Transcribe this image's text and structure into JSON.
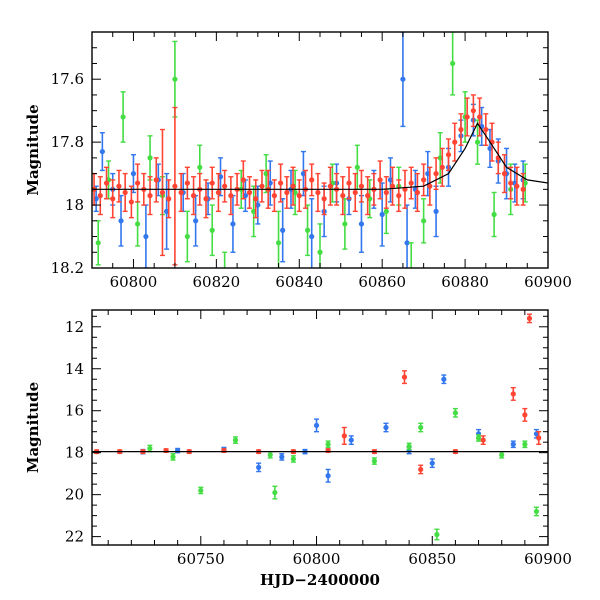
{
  "chart_data": [
    {
      "type": "scatter",
      "panel": "top",
      "xlabel": "",
      "ylabel": "Magnitude",
      "xlim": [
        60790,
        60900
      ],
      "ylim": [
        18.2,
        17.45
      ],
      "y_inverted": true,
      "xticks": [
        60800,
        60820,
        60840,
        60860,
        60880,
        60900
      ],
      "yticks": [
        17.6,
        17.8,
        18,
        18.2
      ],
      "xtick_labels": [
        "60800",
        "60820",
        "60840",
        "60860",
        "60880",
        "60900"
      ],
      "ytick_labels": [
        "17.6",
        "17.8",
        "18",
        "18.2"
      ],
      "grid": false,
      "legend": "none",
      "series": [
        {
          "color": "#3377ee",
          "x": [
            60791,
            60792.5,
            60795,
            60797,
            60800,
            60803,
            60806,
            60808,
            60812,
            60815,
            60818,
            60821,
            60824,
            60827,
            60830,
            60833,
            60836,
            60838,
            60841,
            60843,
            60846,
            60849,
            60852,
            60855,
            60858,
            60860,
            60862,
            60865,
            60866,
            60868,
            60871,
            60873,
            60876,
            60879,
            60882,
            60884,
            60886,
            60888,
            60890,
            60892,
            60894
          ],
          "y": [
            17.98,
            17.83,
            17.95,
            18.05,
            17.9,
            18.1,
            17.92,
            18.02,
            17.96,
            18.05,
            17.98,
            17.91,
            18.06,
            17.97,
            18.0,
            17.93,
            18.08,
            17.95,
            17.9,
            18.1,
            18.02,
            17.93,
            17.98,
            18.06,
            17.95,
            18.03,
            17.92,
            17.6,
            18.12,
            17.95,
            17.9,
            18.02,
            17.88,
            17.78,
            17.73,
            17.75,
            17.82,
            17.86,
            17.9,
            17.93,
            17.92
          ],
          "err": [
            0.04,
            0.06,
            0.05,
            0.08,
            0.06,
            0.1,
            0.05,
            0.12,
            0.06,
            0.08,
            0.05,
            0.06,
            0.09,
            0.05,
            0.06,
            0.07,
            0.1,
            0.06,
            0.07,
            0.12,
            0.08,
            0.06,
            0.05,
            0.09,
            0.06,
            0.1,
            0.07,
            0.15,
            0.12,
            0.06,
            0.07,
            0.08,
            0.06,
            0.05,
            0.05,
            0.06,
            0.06,
            0.07,
            0.08,
            0.06,
            0.06
          ]
        },
        {
          "color": "#44dd44",
          "x": [
            60791.5,
            60794,
            60797.5,
            60801,
            60804,
            60807,
            60810,
            60813,
            60816,
            60819,
            60822,
            60826,
            60829,
            60832,
            60835,
            60839,
            60842,
            60845,
            60848,
            60851,
            60854,
            60857,
            60861,
            60864,
            60867,
            60870,
            60874,
            60877,
            60880,
            60883,
            60887,
            60891,
            60894.5
          ],
          "y": [
            18.12,
            17.92,
            17.72,
            18.06,
            17.85,
            17.97,
            17.6,
            18.1,
            17.88,
            18.08,
            18.25,
            17.95,
            18.02,
            17.9,
            18.12,
            17.96,
            18.08,
            18.15,
            17.93,
            18.06,
            17.88,
            17.98,
            18.02,
            17.94,
            18.22,
            18.05,
            17.85,
            17.55,
            17.72,
            17.8,
            18.03,
            17.95,
            17.93
          ],
          "err": [
            0.07,
            0.06,
            0.08,
            0.07,
            0.07,
            0.06,
            0.12,
            0.08,
            0.07,
            0.08,
            0.1,
            0.06,
            0.08,
            0.06,
            0.1,
            0.07,
            0.08,
            0.09,
            0.06,
            0.08,
            0.07,
            0.06,
            0.07,
            0.06,
            0.1,
            0.07,
            0.08,
            0.1,
            0.08,
            0.07,
            0.07,
            0.08,
            0.06
          ]
        },
        {
          "color": "#ff4433",
          "x": [
            60790.5,
            60792,
            60793.5,
            60795,
            60796.5,
            60798,
            60799.5,
            60801,
            60802.5,
            60804,
            60805.5,
            60807,
            60808.5,
            60810,
            60811.5,
            60813,
            60814.5,
            60816,
            60817.5,
            60819,
            60820.5,
            60822,
            60823.5,
            60825,
            60826.5,
            60828,
            60829.5,
            60831,
            60832.5,
            60834,
            60835.5,
            60837,
            60838.5,
            60840,
            60841.5,
            60843,
            60844.5,
            60846,
            60847.5,
            60849,
            60850.5,
            60852,
            60853.5,
            60855,
            60856.5,
            60858,
            60859.5,
            60861,
            60862.5,
            60864,
            60865.5,
            60867,
            60868.5,
            60870,
            60871.5,
            60873,
            60874.5,
            60876,
            60877.5,
            60879,
            60880.5,
            60882,
            60883.5,
            60885,
            60886.5,
            60888,
            60889.5,
            60891,
            60892.5,
            60894
          ],
          "y": [
            17.95,
            17.97,
            17.93,
            17.98,
            17.94,
            17.96,
            17.99,
            17.93,
            17.95,
            17.97,
            17.92,
            17.96,
            17.98,
            17.94,
            17.96,
            17.93,
            17.97,
            17.95,
            17.98,
            17.93,
            17.96,
            17.94,
            17.97,
            17.95,
            17.92,
            17.96,
            17.98,
            17.94,
            17.95,
            17.97,
            17.93,
            17.96,
            17.94,
            17.97,
            17.95,
            17.92,
            17.96,
            17.98,
            17.94,
            17.95,
            17.97,
            17.93,
            17.96,
            17.94,
            17.97,
            17.95,
            17.92,
            17.96,
            17.94,
            17.97,
            17.95,
            17.93,
            17.96,
            17.92,
            17.94,
            17.9,
            17.88,
            17.84,
            17.8,
            17.76,
            17.72,
            17.7,
            17.72,
            17.76,
            17.8,
            17.85,
            17.9,
            17.93,
            17.94,
            17.95
          ],
          "err": [
            0.05,
            0.06,
            0.05,
            0.06,
            0.05,
            0.06,
            0.05,
            0.06,
            0.05,
            0.06,
            0.07,
            0.2,
            0.06,
            0.25,
            0.06,
            0.05,
            0.06,
            0.05,
            0.06,
            0.05,
            0.06,
            0.05,
            0.06,
            0.05,
            0.06,
            0.05,
            0.06,
            0.05,
            0.06,
            0.05,
            0.06,
            0.05,
            0.06,
            0.05,
            0.06,
            0.05,
            0.06,
            0.05,
            0.06,
            0.05,
            0.06,
            0.05,
            0.06,
            0.05,
            0.06,
            0.05,
            0.06,
            0.05,
            0.06,
            0.05,
            0.06,
            0.05,
            0.06,
            0.05,
            0.06,
            0.05,
            0.06,
            0.05,
            0.06,
            0.05,
            0.06,
            0.05,
            0.06,
            0.05,
            0.06,
            0.05,
            0.06,
            0.05,
            0.06,
            0.05
          ]
        },
        {
          "color": "#000000",
          "mode": "line",
          "x": [
            60790,
            60800,
            60810,
            60820,
            60830,
            60840,
            60850,
            60860,
            60870,
            60876,
            60880,
            60883,
            60886,
            60890,
            60895,
            60900
          ],
          "y": [
            17.95,
            17.95,
            17.95,
            17.95,
            17.95,
            17.95,
            17.95,
            17.95,
            17.94,
            17.9,
            17.82,
            17.74,
            17.8,
            17.88,
            17.92,
            17.93
          ]
        }
      ]
    },
    {
      "type": "scatter",
      "panel": "bottom",
      "xlabel": "HJD−2400000",
      "ylabel": "Magnitude",
      "xlim": [
        60703,
        60900
      ],
      "ylim": [
        22.4,
        11.2
      ],
      "y_inverted": true,
      "xticks": [
        60750,
        60800,
        60850,
        60900
      ],
      "yticks": [
        12,
        14,
        16,
        18,
        20,
        22
      ],
      "xtick_labels": [
        "60750",
        "60800",
        "60850",
        "60900"
      ],
      "ytick_labels": [
        "12",
        "14",
        "16",
        "18",
        "20",
        "22"
      ],
      "grid": false,
      "legend": "none",
      "series": [
        {
          "color": "#3377ee",
          "x": [
            60725,
            60740,
            60760,
            60775,
            60785,
            60795,
            60800,
            60805,
            60815,
            60830,
            60840,
            60850,
            60855,
            60870,
            60885,
            60895
          ],
          "y": [
            17.95,
            17.9,
            17.85,
            18.7,
            18.2,
            17.95,
            16.7,
            19.1,
            17.4,
            16.8,
            17.9,
            18.5,
            14.5,
            17.1,
            17.6,
            17.1
          ],
          "err": [
            0.1,
            0.1,
            0.1,
            0.2,
            0.15,
            0.1,
            0.3,
            0.3,
            0.2,
            0.2,
            0.15,
            0.2,
            0.2,
            0.2,
            0.15,
            0.2
          ]
        },
        {
          "color": "#44dd44",
          "x": [
            60728,
            60738,
            60750,
            60765,
            60780,
            60782,
            60790,
            60805,
            60825,
            60840,
            60845,
            60852,
            60860,
            60870,
            60880,
            60890,
            60895
          ],
          "y": [
            17.8,
            18.2,
            19.8,
            17.4,
            18.1,
            19.9,
            18.3,
            17.6,
            18.4,
            17.7,
            16.8,
            21.9,
            16.1,
            17.3,
            18.1,
            17.6,
            20.8
          ],
          "err": [
            0.15,
            0.15,
            0.15,
            0.15,
            0.15,
            0.3,
            0.15,
            0.15,
            0.15,
            0.15,
            0.2,
            0.25,
            0.2,
            0.15,
            0.15,
            0.15,
            0.2
          ]
        },
        {
          "color": "#ff4433",
          "x": [
            60705,
            60715,
            60725,
            60735,
            60745,
            60760,
            60775,
            60790,
            60805,
            60812,
            60825,
            60838,
            60845,
            60860,
            60872,
            60885,
            60890,
            60892,
            60896
          ],
          "y": [
            17.95,
            17.95,
            17.95,
            17.9,
            17.95,
            17.9,
            17.95,
            17.95,
            17.9,
            17.2,
            17.95,
            14.4,
            18.8,
            17.95,
            17.4,
            15.2,
            16.2,
            11.6,
            17.3
          ],
          "err": [
            0.08,
            0.08,
            0.08,
            0.08,
            0.08,
            0.08,
            0.08,
            0.08,
            0.08,
            0.4,
            0.08,
            0.3,
            0.2,
            0.08,
            0.2,
            0.3,
            0.3,
            0.2,
            0.3
          ]
        },
        {
          "color": "#000000",
          "mode": "line",
          "x": [
            60703,
            60750,
            60800,
            60850,
            60880,
            60900
          ],
          "y": [
            17.95,
            17.95,
            17.95,
            17.95,
            17.95,
            17.95
          ]
        }
      ]
    }
  ]
}
